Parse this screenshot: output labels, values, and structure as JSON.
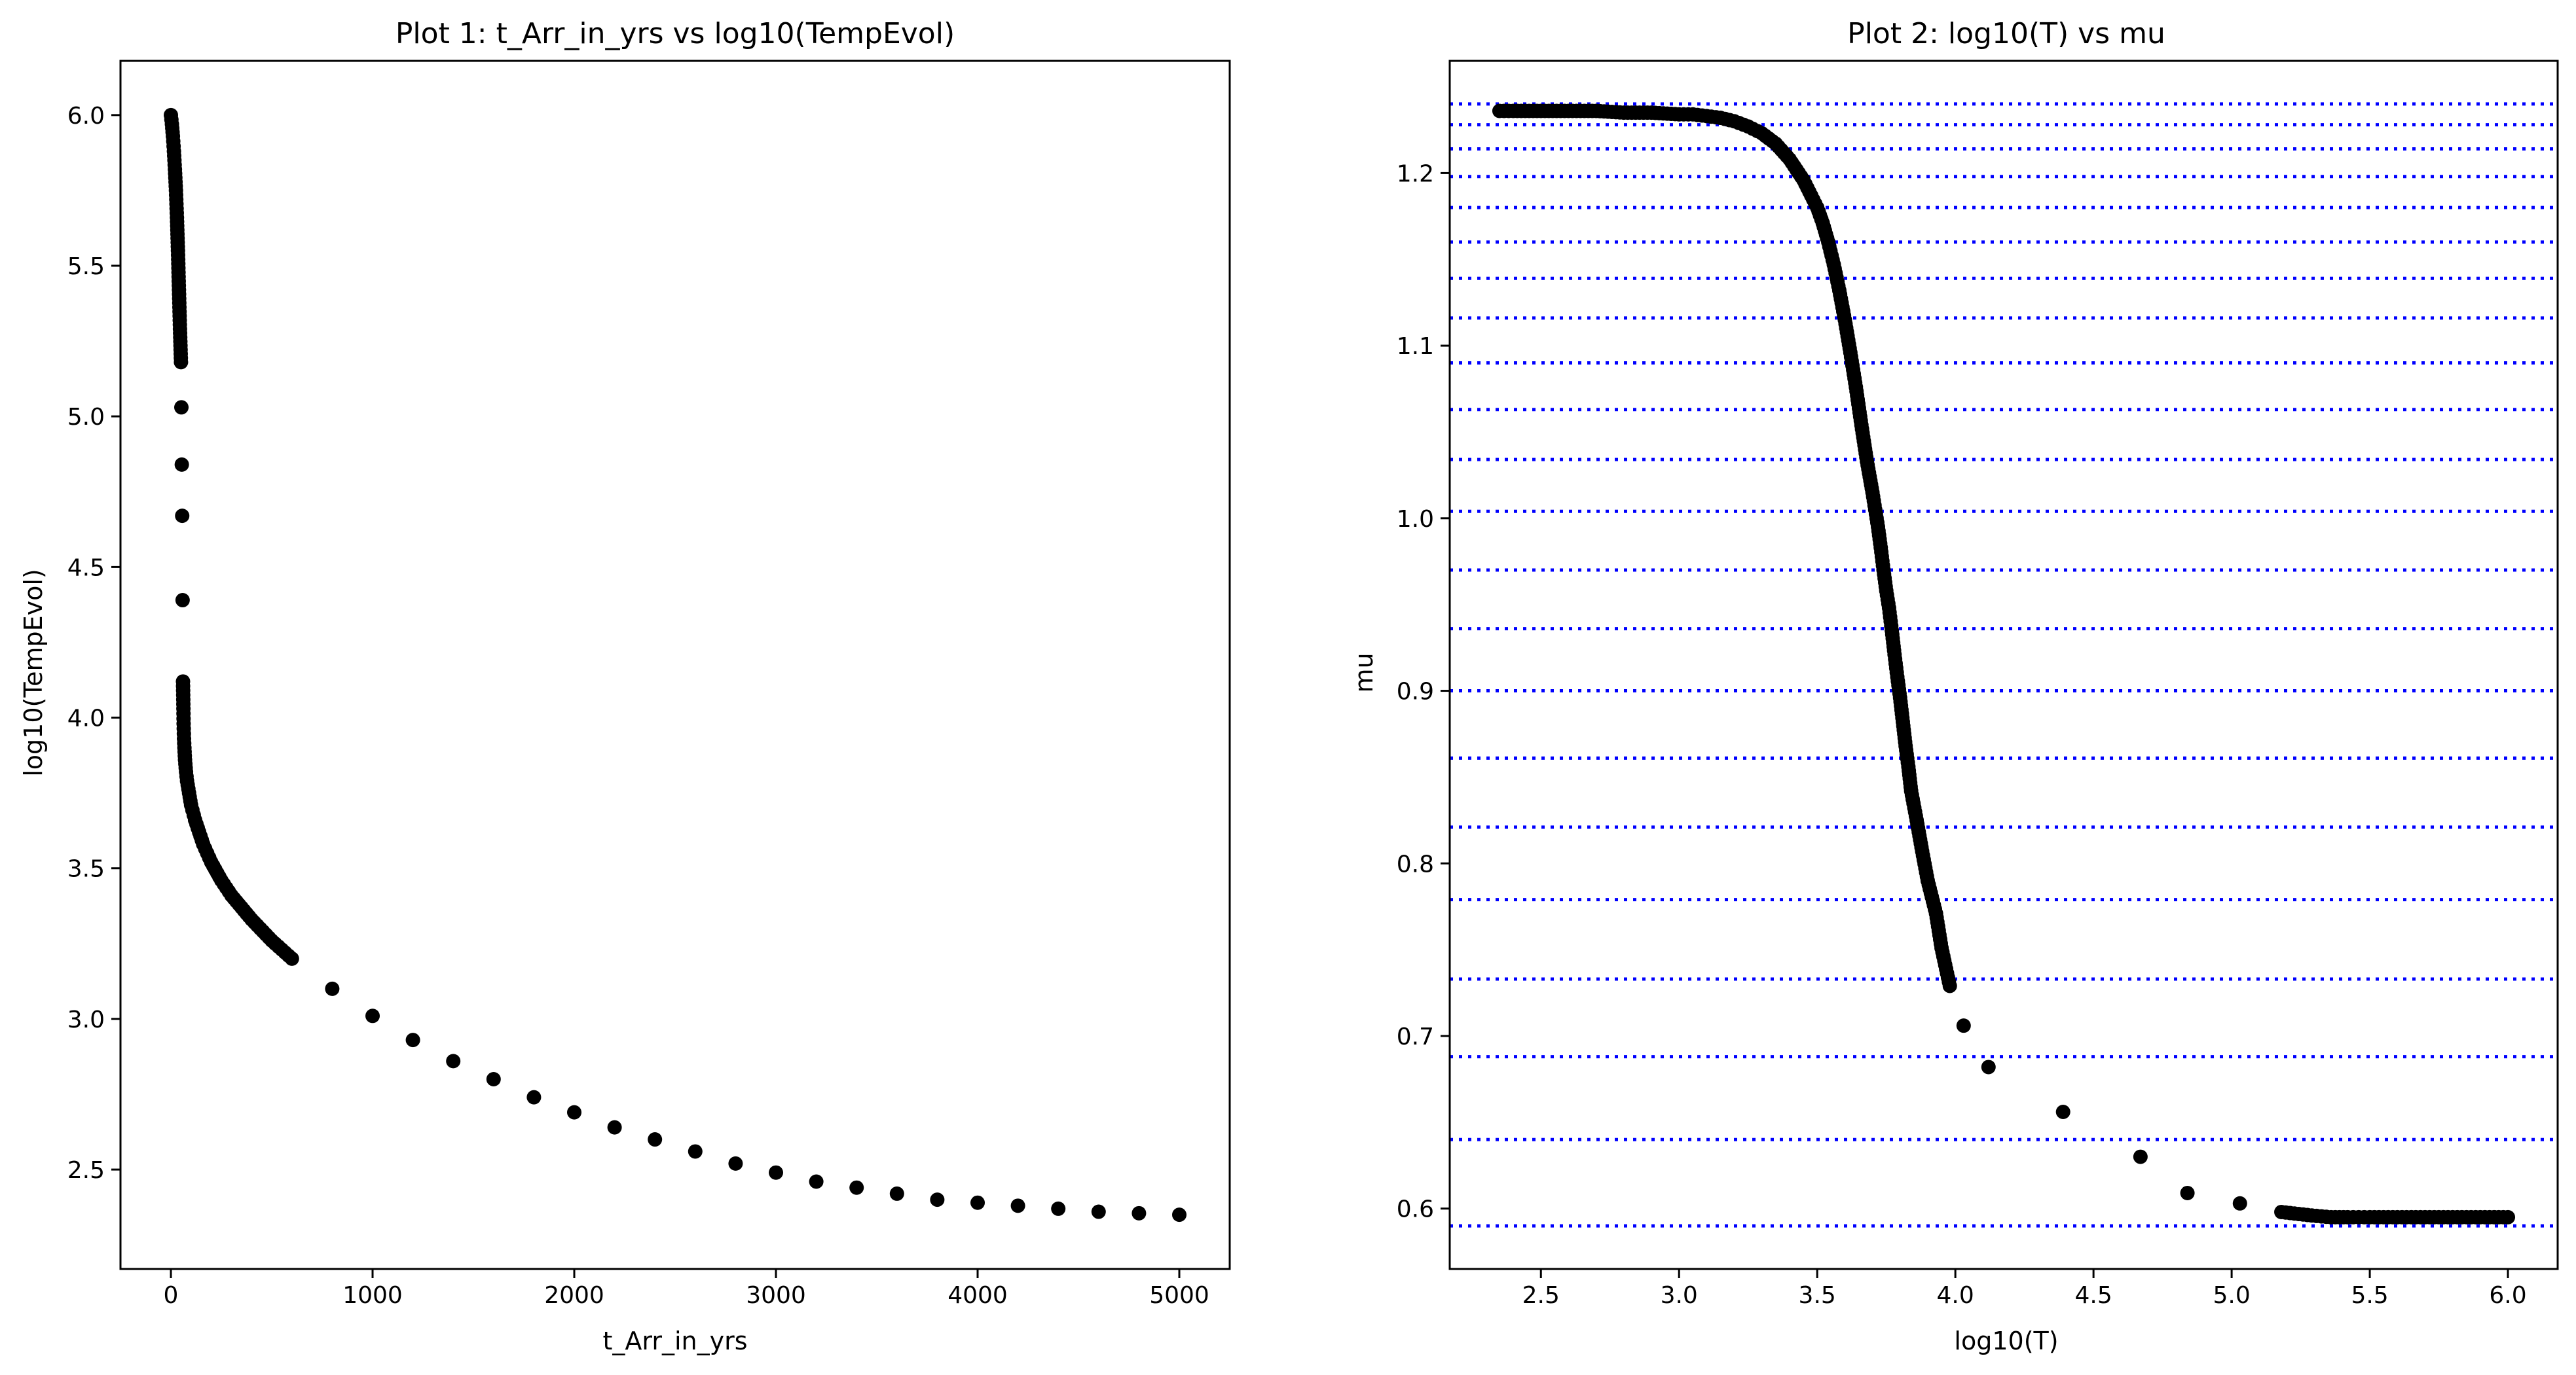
{
  "chart_data": [
    {
      "type": "scatter",
      "title": "Plot 1: t_Arr_in_yrs vs log10(TempEvol)",
      "xlabel": "t_Arr_in_yrs",
      "ylabel": "log10(TempEvol)",
      "xlim": [
        -250,
        5250
      ],
      "ylim": [
        2.17,
        6.18
      ],
      "xticks": [
        0,
        1000,
        2000,
        3000,
        4000,
        5000
      ],
      "xtick_labels": [
        "0",
        "1000",
        "2000",
        "3000",
        "4000",
        "5000"
      ],
      "yticks": [
        2.5,
        3.0,
        3.5,
        4.0,
        4.5,
        5.0,
        5.5,
        6.0
      ],
      "ytick_labels": [
        "2.5",
        "3.0",
        "3.5",
        "4.0",
        "4.5",
        "5.0",
        "5.5",
        "6.0"
      ],
      "grid": false,
      "marker_color": "#000000",
      "series": [
        {
          "x": [
            0,
            5,
            10,
            15,
            20,
            25,
            30,
            35,
            40,
            45,
            50,
            52,
            54,
            56,
            58,
            60,
            62,
            63,
            65,
            67,
            70,
            75,
            80,
            90,
            100,
            120,
            140,
            160,
            180,
            200,
            250,
            300,
            400,
            500,
            600,
            800,
            1000,
            1200,
            1400,
            1600,
            1800,
            2000,
            2200,
            2400,
            2600,
            2800,
            3000,
            3200,
            3400,
            3600,
            3800,
            4000,
            4200,
            4400,
            4600,
            4800,
            5000
          ],
          "y": [
            6.0,
            5.97,
            5.93,
            5.88,
            5.82,
            5.75,
            5.66,
            5.55,
            5.42,
            5.29,
            5.18,
            5.03,
            4.84,
            4.67,
            4.39,
            4.12,
            4.03,
            3.98,
            3.93,
            3.9,
            3.86,
            3.82,
            3.79,
            3.75,
            3.71,
            3.66,
            3.62,
            3.58,
            3.55,
            3.52,
            3.46,
            3.41,
            3.33,
            3.26,
            3.2,
            3.1,
            3.01,
            2.93,
            2.86,
            2.8,
            2.74,
            2.69,
            2.64,
            2.6,
            2.56,
            2.52,
            2.49,
            2.46,
            2.44,
            2.42,
            2.4,
            2.39,
            2.38,
            2.37,
            2.36,
            2.355,
            2.35
          ]
        }
      ]
    },
    {
      "type": "scatter",
      "title": "Plot 2: log10(T) vs mu",
      "xlabel": "log10(T)",
      "ylabel": "mu",
      "xlim": [
        2.17,
        6.18
      ],
      "ylim": [
        0.565,
        1.265
      ],
      "xticks": [
        2.5,
        3.0,
        3.5,
        4.0,
        4.5,
        5.0,
        5.5,
        6.0
      ],
      "xtick_labels": [
        "2.5",
        "3.0",
        "3.5",
        "4.0",
        "4.5",
        "5.0",
        "5.5",
        "6.0"
      ],
      "yticks": [
        0.6,
        0.7,
        0.8,
        0.9,
        1.0,
        1.1,
        1.2
      ],
      "ytick_labels": [
        "0.6",
        "0.7",
        "0.8",
        "0.9",
        "1.0",
        "1.1",
        "1.2"
      ],
      "grid": false,
      "marker_color": "#000000",
      "hlines": {
        "color": "#0000ff",
        "style": "dotted",
        "values": [
          0.59,
          0.64,
          0.688,
          0.733,
          0.779,
          0.821,
          0.861,
          0.9,
          0.936,
          0.97,
          1.004,
          1.034,
          1.063,
          1.09,
          1.116,
          1.139,
          1.16,
          1.18,
          1.198,
          1.214,
          1.228,
          1.24
        ]
      },
      "series": [
        {
          "x": [
            2.35,
            2.4,
            2.5,
            2.6,
            2.7,
            2.8,
            2.9,
            3.0,
            3.05,
            3.1,
            3.15,
            3.2,
            3.25,
            3.3,
            3.35,
            3.4,
            3.45,
            3.5,
            3.52,
            3.54,
            3.56,
            3.58,
            3.6,
            3.62,
            3.64,
            3.66,
            3.68,
            3.7,
            3.71,
            3.72,
            3.73,
            3.74,
            3.75,
            3.76,
            3.77,
            3.78,
            3.79,
            3.8,
            3.81,
            3.82,
            3.83,
            3.84,
            3.86,
            3.88,
            3.9,
            3.93,
            3.95,
            3.98,
            4.03,
            4.12,
            4.39,
            4.67,
            4.84,
            5.03,
            5.18,
            5.29,
            5.36,
            5.42,
            5.46,
            5.5,
            5.55,
            5.6,
            5.65,
            5.7,
            5.75,
            5.8,
            5.85,
            5.9,
            5.95,
            6.0
          ],
          "y": [
            1.236,
            1.236,
            1.236,
            1.236,
            1.236,
            1.235,
            1.235,
            1.234,
            1.234,
            1.233,
            1.232,
            1.23,
            1.227,
            1.223,
            1.217,
            1.208,
            1.196,
            1.18,
            1.171,
            1.16,
            1.147,
            1.132,
            1.115,
            1.096,
            1.076,
            1.054,
            1.033,
            1.015,
            1.005,
            0.995,
            0.983,
            0.97,
            0.958,
            0.948,
            0.935,
            0.921,
            0.908,
            0.896,
            0.882,
            0.868,
            0.856,
            0.842,
            0.825,
            0.807,
            0.79,
            0.771,
            0.751,
            0.729,
            0.706,
            0.682,
            0.656,
            0.63,
            0.609,
            0.603,
            0.598,
            0.596,
            0.595,
            0.595,
            0.595,
            0.595,
            0.595,
            0.595,
            0.595,
            0.595,
            0.595,
            0.595,
            0.595,
            0.595,
            0.595,
            0.595
          ]
        }
      ]
    }
  ]
}
